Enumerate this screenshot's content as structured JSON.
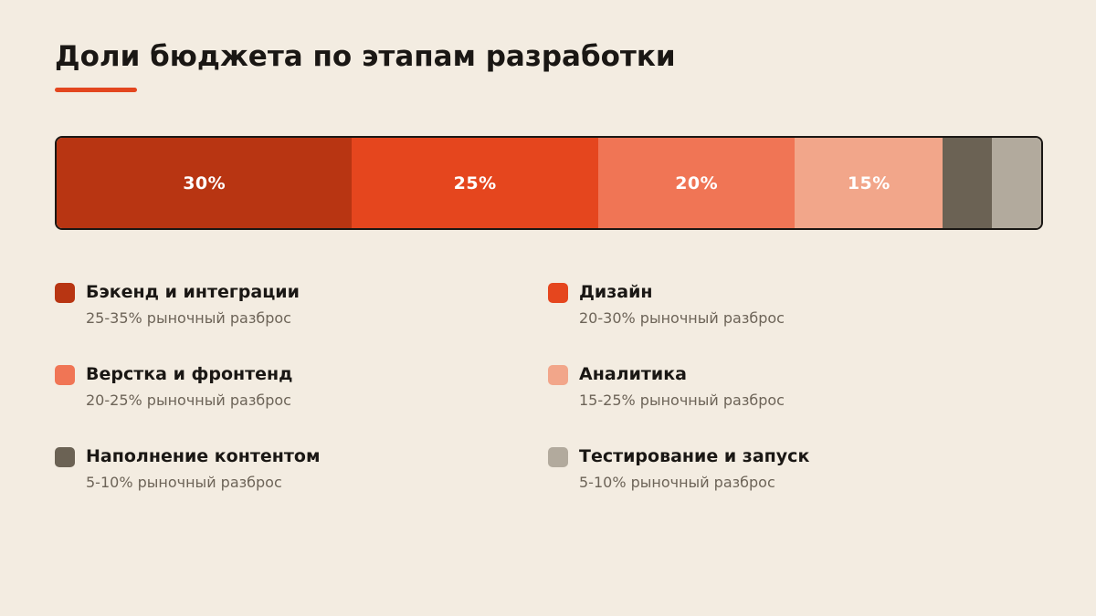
{
  "title": "Доли бюджета по этапам разработки",
  "colors": {
    "background": "#f3ece1",
    "accent": "#e3461f",
    "text": "#1a1714",
    "muted": "#6d6458"
  },
  "chart_data": {
    "type": "bar",
    "orientation": "horizontal-stacked-100",
    "title": "Доли бюджета по этапам разработки",
    "xlabel": "",
    "ylabel": "",
    "categories": [
      "Бэкенд и интеграции",
      "Дизайн",
      "Верстка и фронтенд",
      "Аналитика",
      "Наполнение контентом",
      "Тестирование и запуск"
    ],
    "values": [
      30,
      25,
      20,
      15,
      5,
      5
    ],
    "value_labels": [
      "30%",
      "25%",
      "20%",
      "15%",
      "",
      ""
    ],
    "colors": [
      "#b83512",
      "#e5461e",
      "#f07555",
      "#f2a68a",
      "#6b6254",
      "#b2aa9d"
    ],
    "legend": {
      "placement": "bottom",
      "columns": 2,
      "items": [
        {
          "name": "Бэкенд и интеграции",
          "range": "25-35% рыночный разброс"
        },
        {
          "name": "Дизайн",
          "range": "20-30% рыночный разброс"
        },
        {
          "name": "Верстка и фронтенд",
          "range": "20-25% рыночный разброс"
        },
        {
          "name": "Аналитика",
          "range": "15-25% рыночный разброс"
        },
        {
          "name": "Наполнение контентом",
          "range": "5-10% рыночный разброс"
        },
        {
          "name": "Тестирование и запуск",
          "range": "5-10% рыночный разброс"
        }
      ]
    },
    "grid": false
  }
}
